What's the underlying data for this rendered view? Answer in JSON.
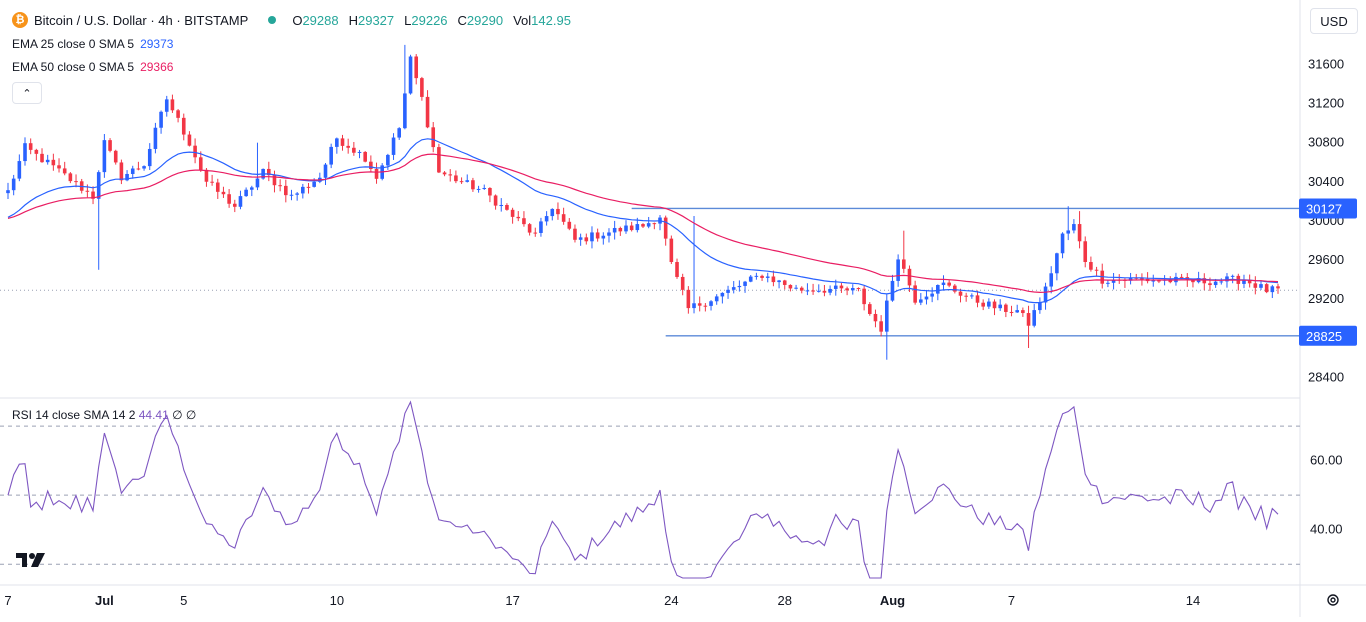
{
  "legend": {
    "coin_symbol": "₿",
    "title": "Bitcoin / U.S. Dollar · 4h · BITSTAMP",
    "ohlc": [
      {
        "key": "O",
        "value": "29288"
      },
      {
        "key": "H",
        "value": "29327"
      },
      {
        "key": "L",
        "value": "29226"
      },
      {
        "key": "C",
        "value": "29290"
      }
    ],
    "vol_label": "Vol",
    "vol_value": "142.95",
    "ema25_label": "EMA 25 close 0 SMA 5",
    "ema25_value": "29373",
    "ema50_label": "EMA 50 close 0 SMA 5",
    "ema50_value": "29366",
    "collapse_symbol": "⌃"
  },
  "currency": "USD",
  "rsi_legend": {
    "label": "RSI 14 close SMA 14 2",
    "value": "44.41",
    "extra": "∅ ∅"
  },
  "colors": {
    "up": "#2962ff",
    "down": "#f23645",
    "ema25": "#2962ff",
    "ema50": "#e91e63",
    "rsi": "#7e57c2",
    "level_line": "#5b8ad8",
    "label_bg": "#2962ff",
    "grid_text": "#131722"
  },
  "chart_data": {
    "type": "candlestick",
    "symbol": "Bitcoin / U.S. Dollar",
    "interval": "4h",
    "exchange": "BITSTAMP",
    "price_axis": {
      "ticks": [
        28400,
        28800,
        29200,
        29600,
        30000,
        30400,
        30800,
        31200,
        31600
      ],
      "tick_labels": [
        "28400",
        "28800",
        "29200",
        "29600",
        "30000",
        "30400",
        "30800",
        "31200",
        "31600"
      ],
      "range": [
        28250,
        31850
      ]
    },
    "time_axis": {
      "labels": [
        "7",
        "Jul",
        "5",
        "10",
        "17",
        "24",
        "28",
        "Aug",
        "7",
        "14"
      ],
      "label_index": [
        0,
        17,
        31,
        58,
        89,
        117,
        137,
        156,
        177,
        209
      ],
      "bold": [
        "Jul",
        "Aug"
      ],
      "total_bars": 225
    },
    "horizontal_levels": [
      {
        "price": 30127,
        "label": "30127"
      },
      {
        "price": 28825,
        "label": "28825"
      }
    ],
    "last_price": 29290,
    "anchors": [
      [
        0,
        30300
      ],
      [
        3,
        30750
      ],
      [
        8,
        30550
      ],
      [
        15,
        30250
      ],
      [
        17,
        30800
      ],
      [
        20,
        30450
      ],
      [
        24,
        30580
      ],
      [
        28,
        31250
      ],
      [
        32,
        30800
      ],
      [
        35,
        30400
      ],
      [
        40,
        30150
      ],
      [
        45,
        30500
      ],
      [
        50,
        30250
      ],
      [
        55,
        30450
      ],
      [
        58,
        30850
      ],
      [
        63,
        30650
      ],
      [
        65,
        30450
      ],
      [
        69,
        30950
      ],
      [
        71,
        31650
      ],
      [
        73,
        31250
      ],
      [
        76,
        30500
      ],
      [
        84,
        30300
      ],
      [
        89,
        30050
      ],
      [
        93,
        29850
      ],
      [
        96,
        30150
      ],
      [
        100,
        29800
      ],
      [
        107,
        29900
      ],
      [
        112,
        29950
      ],
      [
        115,
        30050
      ],
      [
        117,
        29550
      ],
      [
        120,
        29100
      ],
      [
        126,
        29250
      ],
      [
        133,
        29450
      ],
      [
        139,
        29300
      ],
      [
        145,
        29300
      ],
      [
        150,
        29280
      ],
      [
        152,
        29050
      ],
      [
        154,
        28900
      ],
      [
        157,
        29650
      ],
      [
        160,
        29200
      ],
      [
        165,
        29350
      ],
      [
        170,
        29200
      ],
      [
        175,
        29100
      ],
      [
        178,
        29080
      ],
      [
        180,
        28950
      ],
      [
        183,
        29300
      ],
      [
        186,
        29850
      ],
      [
        188,
        29950
      ],
      [
        190,
        29600
      ],
      [
        193,
        29400
      ],
      [
        200,
        29400
      ],
      [
        210,
        29380
      ],
      [
        218,
        29400
      ],
      [
        222,
        29290
      ]
    ],
    "series": [
      {
        "name": "EMA 25 close 0 SMA 5",
        "last": 29373
      },
      {
        "name": "EMA 50 close 0 SMA 5",
        "last": 29366
      }
    ],
    "rsi": {
      "ticks": [
        40,
        60
      ],
      "tick_labels": [
        "40.00",
        "60.00"
      ],
      "bands": [
        30,
        50,
        70
      ],
      "range": [
        26,
        77
      ],
      "last": 44.41
    }
  }
}
